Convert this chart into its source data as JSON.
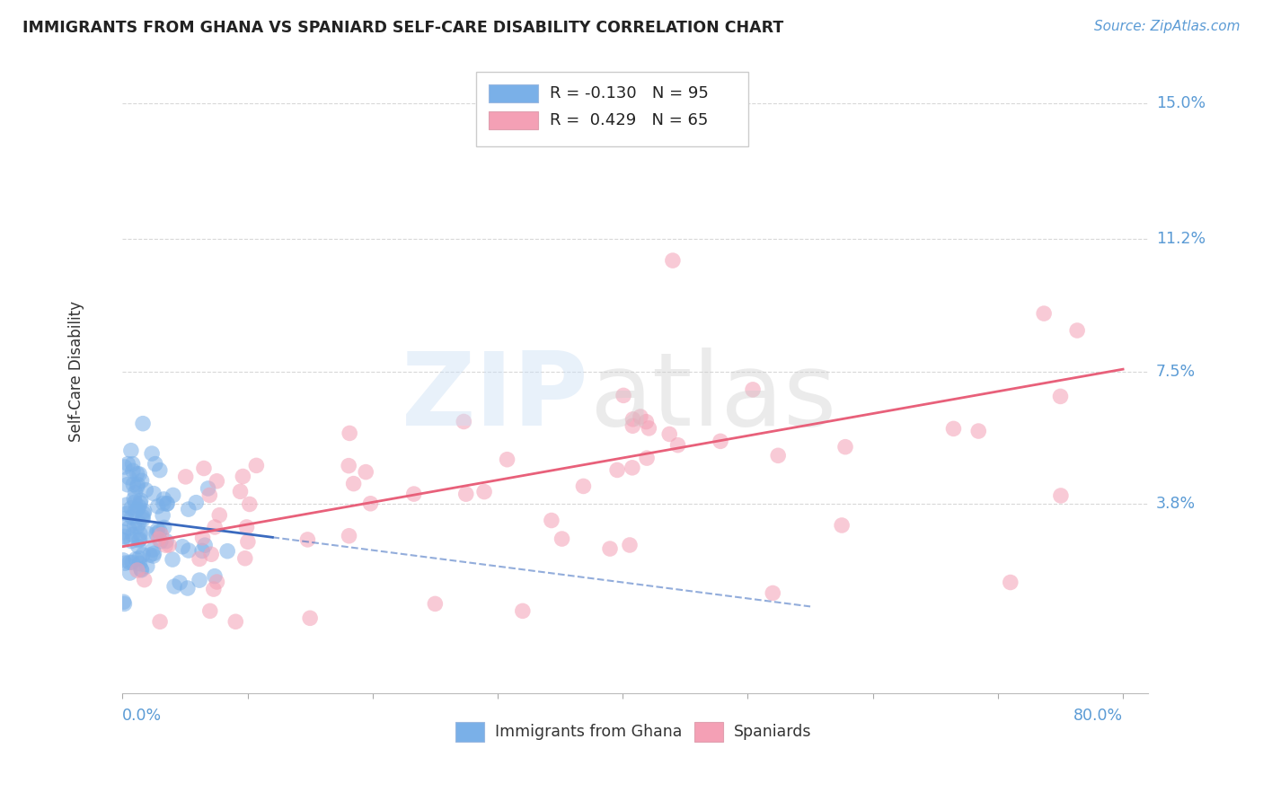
{
  "title": "IMMIGRANTS FROM GHANA VS SPANIARD SELF-CARE DISABILITY CORRELATION CHART",
  "source": "Source: ZipAtlas.com",
  "ylabel": "Self-Care Disability",
  "ghana_color": "#7ab0e8",
  "spaniard_color": "#f4a0b5",
  "ghana_line_color": "#3a6abf",
  "spaniard_line_color": "#e8607a",
  "ghana_R": -0.13,
  "ghana_N": 95,
  "spaniard_R": 0.429,
  "spaniard_N": 65,
  "title_color": "#222222",
  "axis_label_color": "#5b9bd5",
  "background_color": "#ffffff",
  "grid_color": "#d8d8d8",
  "ytick_labels": [
    "15.0%",
    "11.2%",
    "7.5%",
    "3.8%"
  ],
  "ytick_values": [
    0.15,
    0.112,
    0.075,
    0.038
  ],
  "xlim": [
    0.0,
    0.82
  ],
  "ylim": [
    -0.015,
    0.165
  ],
  "ghana_intercept": 0.034,
  "ghana_slope": -0.045,
  "spaniard_intercept": 0.026,
  "spaniard_slope": 0.062,
  "legend_box_text_blue": "R = -0.130   N = 95",
  "legend_box_text_pink": "R =  0.429   N = 65",
  "bottom_legend_blue": "Immigrants from Ghana",
  "bottom_legend_pink": "Spaniards"
}
